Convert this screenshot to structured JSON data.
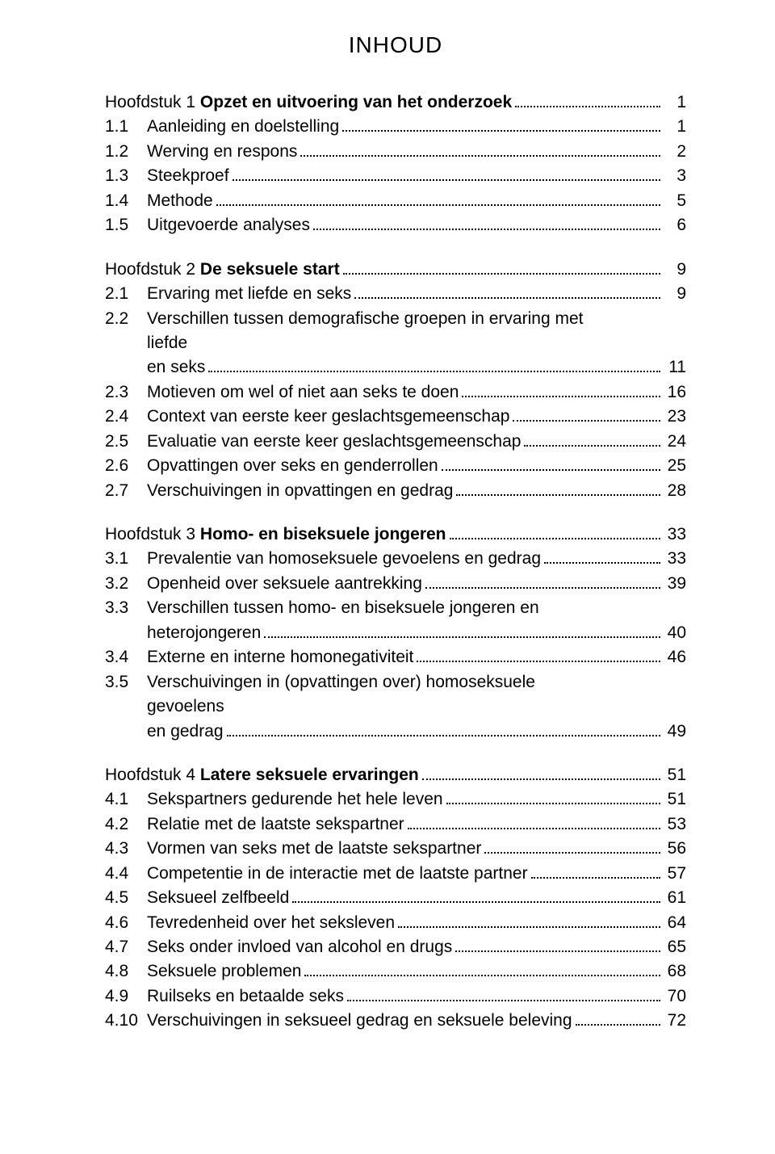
{
  "page": {
    "title": "INHOUD",
    "text_color": "#000000",
    "background_color": "#ffffff",
    "title_fontsize": 28,
    "body_fontsize": 21,
    "font_family": "Trebuchet MS",
    "leader_style": "dotted"
  },
  "chapters": [
    {
      "heading_prefix": "Hoofdstuk 1",
      "heading_title": "Opzet en uitvoering van het onderzoek",
      "heading_page": "1",
      "entries": [
        {
          "num": "1.1",
          "label": "Aanleiding en doelstelling",
          "page": "1"
        },
        {
          "num": "1.2",
          "label": "Werving en respons",
          "page": "2"
        },
        {
          "num": "1.3",
          "label": "Steekproef",
          "page": "3"
        },
        {
          "num": "1.4",
          "label": "Methode",
          "page": "5"
        },
        {
          "num": "1.5",
          "label": "Uitgevoerde analyses",
          "page": "6"
        }
      ]
    },
    {
      "heading_prefix": "Hoofdstuk 2",
      "heading_title": "De seksuele start",
      "heading_page": "9",
      "entries": [
        {
          "num": "2.1",
          "label": "Ervaring met liefde en seks",
          "page": "9"
        },
        {
          "num": "2.2",
          "label": "Verschillen tussen demografische groepen in ervaring met liefde",
          "label2": "en seks",
          "page": "11"
        },
        {
          "num": "2.3",
          "label": "Motieven om wel of niet aan seks te doen",
          "page": "16"
        },
        {
          "num": "2.4",
          "label": "Context van eerste keer geslachtsgemeenschap",
          "page": "23"
        },
        {
          "num": "2.5",
          "label": "Evaluatie van eerste keer geslachtsgemeenschap",
          "page": "24"
        },
        {
          "num": "2.6",
          "label": "Opvattingen over seks en genderrollen",
          "page": "25"
        },
        {
          "num": "2.7",
          "label": "Verschuivingen in opvattingen en gedrag",
          "page": "28"
        }
      ]
    },
    {
      "heading_prefix": "Hoofdstuk 3",
      "heading_title": "Homo- en biseksuele jongeren",
      "heading_page": "33",
      "entries": [
        {
          "num": "3.1",
          "label": "Prevalentie van homoseksuele gevoelens en gedrag",
          "page": "33"
        },
        {
          "num": "3.2",
          "label": "Openheid over seksuele aantrekking",
          "page": "39"
        },
        {
          "num": "3.3",
          "label": "Verschillen tussen homo- en biseksuele jongeren en",
          "label2": "heterojongeren",
          "page": "40"
        },
        {
          "num": "3.4",
          "label": "Externe en interne homonegativiteit",
          "page": "46"
        },
        {
          "num": "3.5",
          "label": "Verschuivingen in (opvattingen over) homoseksuele gevoelens",
          "label2": "en gedrag",
          "page": "49"
        }
      ]
    },
    {
      "heading_prefix": "Hoofdstuk 4",
      "heading_title": "Latere seksuele ervaringen",
      "heading_page": "51",
      "entries": [
        {
          "num": "4.1",
          "label": "Sekspartners gedurende het hele leven",
          "page": "51"
        },
        {
          "num": "4.2",
          "label": "Relatie met de laatste sekspartner",
          "page": "53"
        },
        {
          "num": "4.3",
          "label": "Vormen van seks met de laatste sekspartner",
          "page": "56"
        },
        {
          "num": "4.4",
          "label": "Competentie in de interactie met de laatste partner",
          "page": "57"
        },
        {
          "num": "4.5",
          "label": "Seksueel zelfbeeld",
          "page": "61"
        },
        {
          "num": "4.6",
          "label": "Tevredenheid over het seksleven",
          "page": "64"
        },
        {
          "num": "4.7",
          "label": "Seks onder invloed van alcohol en drugs",
          "page": "65"
        },
        {
          "num": "4.8",
          "label": "Seksuele problemen",
          "page": "68"
        },
        {
          "num": "4.9",
          "label": "Ruilseks en betaalde seks",
          "page": "70"
        },
        {
          "num": "4.10",
          "label": "Verschuivingen in seksueel gedrag en seksuele beleving",
          "page": "72"
        }
      ]
    }
  ]
}
